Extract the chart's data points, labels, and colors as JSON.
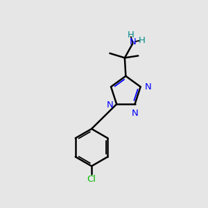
{
  "background_color": "#e6e6e6",
  "bond_color": "#000000",
  "N_color": "#0000ff",
  "Cl_color": "#00bb00",
  "NH2_color": "#008888",
  "figsize": [
    3.0,
    3.0
  ],
  "dpi": 100,
  "xlim": [
    0,
    10
  ],
  "ylim": [
    0,
    10
  ]
}
